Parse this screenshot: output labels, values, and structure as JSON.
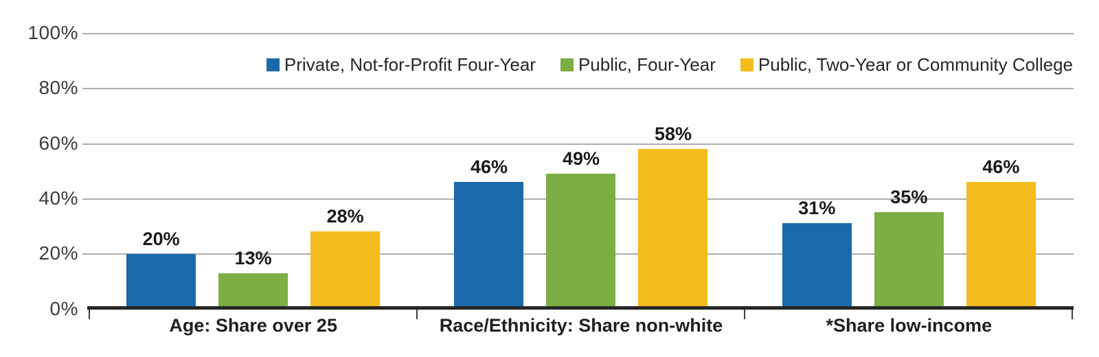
{
  "chart_data": {
    "type": "bar",
    "title": "",
    "categories": [
      "Age: Share over 25",
      "Race/Ethnicity: Share non-white",
      "*Share low-income"
    ],
    "series": [
      {
        "name": "Private, Not-for-Profit Four-Year",
        "color": "#1b69a9",
        "values": [
          20,
          46,
          31
        ],
        "labels": [
          "20%",
          "46%",
          "31%"
        ]
      },
      {
        "name": "Public, Four-Year",
        "color": "#7caf43",
        "values": [
          13,
          49,
          35
        ],
        "labels": [
          "13%",
          "49%",
          "35%"
        ]
      },
      {
        "name": "Public, Two-Year or Community College",
        "color": "#f3bb1c",
        "values": [
          28,
          58,
          46
        ],
        "labels": [
          "28%",
          "58%",
          "46%"
        ]
      }
    ],
    "y_axis": {
      "min": 0,
      "max": 100,
      "grid": true,
      "tick_labels_top_down": [
        "100%",
        "80%",
        "60%",
        "40%",
        "20%",
        "0%"
      ]
    },
    "legend_position": "top-right-inside"
  }
}
